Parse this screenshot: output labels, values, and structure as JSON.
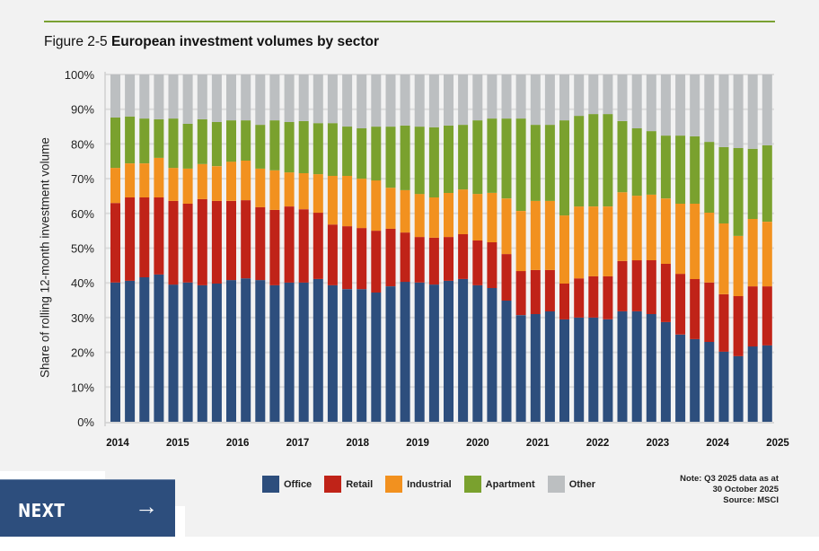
{
  "figure": {
    "prefix": "Figure 2-5",
    "title": "European investment volumes by sector"
  },
  "chart_data": {
    "type": "bar",
    "stacked": true,
    "title": "European investment volumes by sector",
    "xlabel": "",
    "ylabel": "Share of rolling 12-month investment volume",
    "ylim": [
      0,
      100
    ],
    "y_ticks": [
      "0%",
      "10%",
      "20%",
      "30%",
      "40%",
      "50%",
      "60%",
      "70%",
      "80%",
      "90%",
      "100%"
    ],
    "x_tick_labels": [
      "2014",
      "2015",
      "2016",
      "2017",
      "2018",
      "2019",
      "2020",
      "2021",
      "2022",
      "2023",
      "2024",
      "2025"
    ],
    "grid": true,
    "legend_position": "bottom-center",
    "bar_count": 46,
    "frequency": "quarterly",
    "series": [
      {
        "name": "Office",
        "color": "#2d4e7d",
        "values": [
          40.1,
          40.6,
          41.6,
          42.4,
          39.5,
          40.1,
          39.3,
          39.8,
          40.8,
          41.3,
          40.8,
          39.3,
          40.1,
          40.1,
          41.1,
          39.3,
          38.2,
          38.2,
          37.2,
          39.0,
          40.3,
          40.1,
          39.5,
          40.6,
          41.1,
          39.3,
          38.5,
          34.9,
          30.7,
          31.0,
          31.8,
          29.5,
          30.0,
          30.0,
          29.5,
          31.8,
          31.8,
          31.0,
          28.7,
          25.1,
          23.8,
          23.0,
          20.2,
          18.9,
          21.7,
          22.0
        ]
      },
      {
        "name": "Retail",
        "color": "#c02318",
        "values": [
          22.9,
          24.0,
          23.0,
          22.2,
          24.1,
          22.7,
          24.8,
          23.8,
          22.8,
          22.5,
          21.0,
          21.7,
          21.9,
          21.1,
          19.1,
          17.5,
          18.1,
          17.6,
          17.8,
          16.6,
          14.2,
          13.1,
          13.5,
          12.6,
          12.9,
          12.9,
          13.2,
          13.4,
          12.7,
          12.7,
          11.9,
          10.3,
          11.3,
          11.9,
          12.4,
          14.5,
          14.7,
          15.5,
          16.8,
          17.5,
          17.3,
          17.1,
          16.5,
          17.3,
          17.3,
          17.0
        ]
      },
      {
        "name": "Industrial",
        "color": "#f2911f",
        "values": [
          10.1,
          9.8,
          9.8,
          11.4,
          9.5,
          10.1,
          10.1,
          10.0,
          11.3,
          11.4,
          11.1,
          11.4,
          9.8,
          10.4,
          11.1,
          14.0,
          14.5,
          14.2,
          14.5,
          11.8,
          12.2,
          12.4,
          11.6,
          12.7,
          12.9,
          13.4,
          14.2,
          16.0,
          17.3,
          19.9,
          19.9,
          19.6,
          20.7,
          20.1,
          20.1,
          19.8,
          18.6,
          18.9,
          18.8,
          20.2,
          21.7,
          20.1,
          20.4,
          17.3,
          19.4,
          18.6
        ]
      },
      {
        "name": "Apartment",
        "color": "#7aa12e",
        "values": [
          14.5,
          13.5,
          12.9,
          11.1,
          14.2,
          12.9,
          12.9,
          12.7,
          11.9,
          11.6,
          12.6,
          14.4,
          14.5,
          15.0,
          14.7,
          15.2,
          14.2,
          14.5,
          15.5,
          17.6,
          18.6,
          19.4,
          20.2,
          19.4,
          18.6,
          21.2,
          21.4,
          23.0,
          26.6,
          21.9,
          21.9,
          27.4,
          26.1,
          26.6,
          26.6,
          20.5,
          19.4,
          18.3,
          18.1,
          19.6,
          19.4,
          20.4,
          22.0,
          25.3,
          20.2,
          22.0
        ]
      },
      {
        "name": "Other",
        "color": "#bcbfc1",
        "values": [
          12.4,
          12.1,
          12.7,
          12.9,
          12.7,
          14.2,
          12.9,
          13.7,
          13.2,
          13.2,
          14.5,
          13.2,
          13.7,
          13.4,
          14.0,
          14.0,
          15.0,
          15.5,
          15.0,
          15.0,
          14.7,
          15.0,
          15.2,
          14.7,
          14.5,
          13.2,
          12.7,
          12.7,
          12.7,
          14.5,
          14.5,
          13.2,
          11.9,
          11.4,
          11.4,
          13.4,
          15.5,
          16.3,
          17.6,
          17.6,
          17.8,
          19.4,
          20.9,
          21.2,
          21.4,
          20.4
        ]
      }
    ]
  },
  "legend": [
    {
      "label": "Office",
      "color": "#2d4e7d"
    },
    {
      "label": "Retail",
      "color": "#c02318"
    },
    {
      "label": "Industrial",
      "color": "#f2911f"
    },
    {
      "label": "Apartment",
      "color": "#7aa12e"
    },
    {
      "label": "Other",
      "color": "#bcbfc1"
    }
  ],
  "note": {
    "line1": "Note: Q3 2025 data as at",
    "line2": "30 October 2025",
    "line3": "Source: MSCI"
  },
  "nav": {
    "next_label": "NEXT",
    "next_icon": "arrow-right-icon",
    "next_arrow_glyph": "→"
  },
  "colors": {
    "accent_rule": "#7aa132",
    "nav_button": "#2d4e7d"
  }
}
